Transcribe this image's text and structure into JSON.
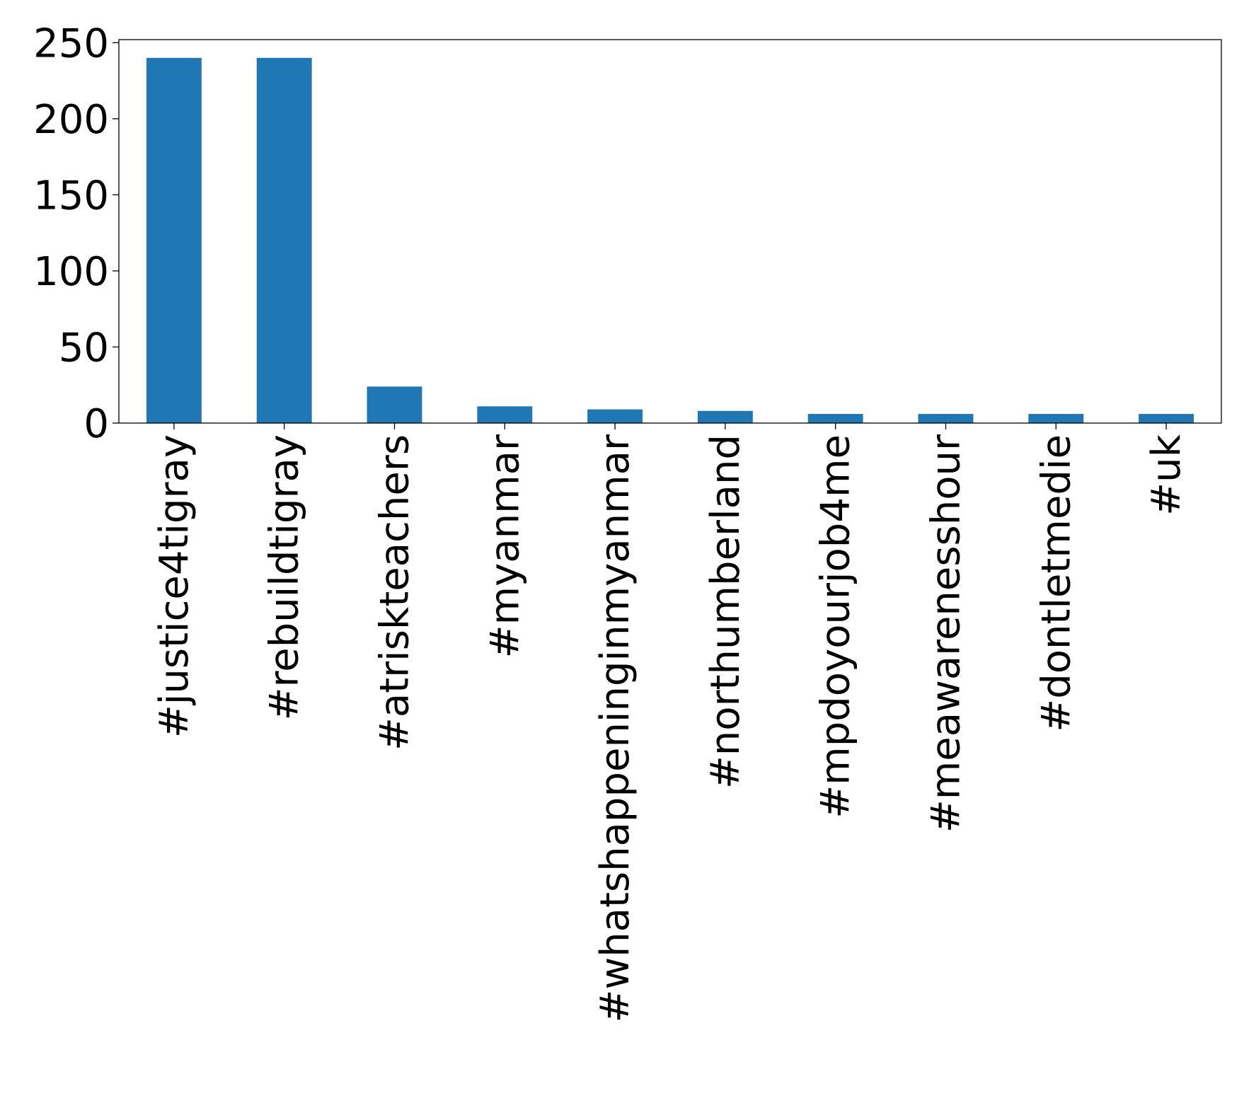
{
  "chart_data": {
    "type": "bar",
    "title": "",
    "xlabel": "",
    "ylabel": "",
    "categories": [
      "#justice4tigray",
      "#rebuildtigray",
      "#atriskteachers",
      "#myanmar",
      "#whatshappeninginmyanmar",
      "#northumberland",
      "#mpdoyourjob4me",
      "#meawarenesshour",
      "#dontletmedie",
      "#uk"
    ],
    "values": [
      240,
      240,
      24,
      11,
      9,
      8,
      6,
      6,
      6,
      6
    ],
    "ylim": [
      0,
      252
    ],
    "yticks": [
      0,
      50,
      100,
      150,
      200,
      250
    ],
    "grid": false,
    "bar_color": "#1f77b4"
  }
}
